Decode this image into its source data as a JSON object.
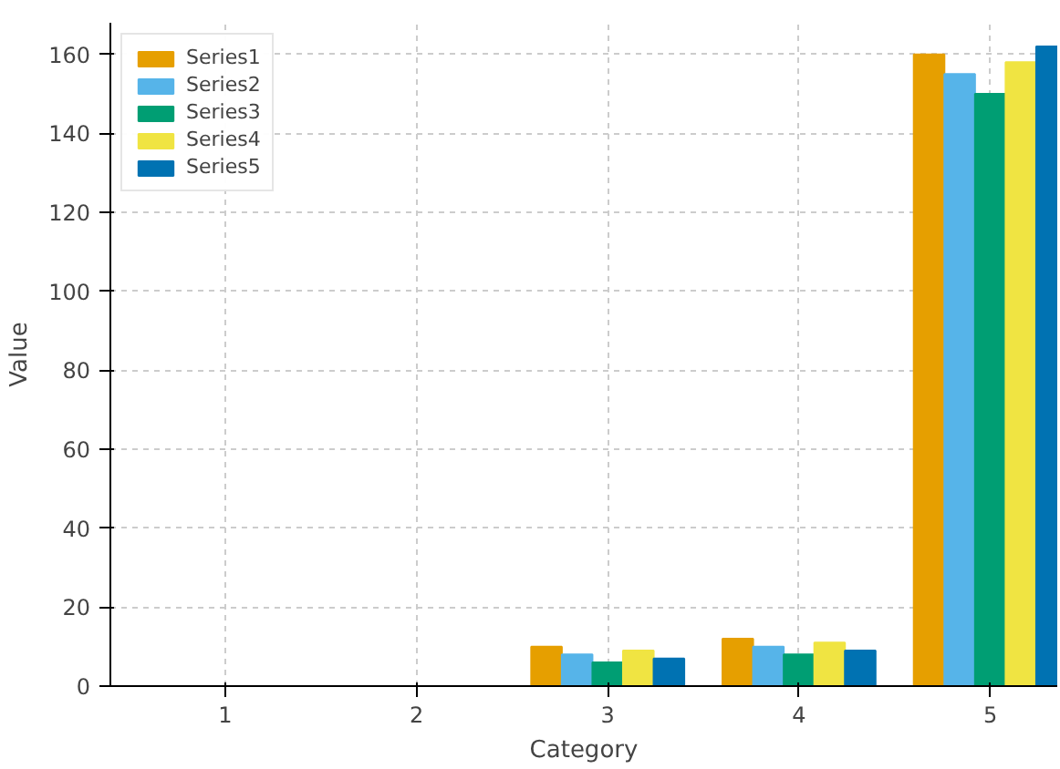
{
  "chart_data": {
    "type": "bar",
    "xlabel": "Category",
    "ylabel": "Value",
    "categories": [
      "1",
      "2",
      "3",
      "4",
      "5"
    ],
    "series": [
      {
        "name": "Series1",
        "color": "#e69f00",
        "values": [
          0,
          0,
          10,
          12,
          160
        ]
      },
      {
        "name": "Series2",
        "color": "#56b4e9",
        "values": [
          0,
          0,
          8,
          10,
          155
        ]
      },
      {
        "name": "Series3",
        "color": "#009e73",
        "values": [
          0,
          0,
          6,
          8,
          150
        ]
      },
      {
        "name": "Series4",
        "color": "#f0e442",
        "values": [
          0,
          0,
          9,
          11,
          158
        ]
      },
      {
        "name": "Series5",
        "color": "#0072b2",
        "values": [
          0,
          0,
          7,
          9,
          162
        ]
      }
    ],
    "ylim": [
      0,
      168
    ],
    "yticks": [
      0,
      20,
      40,
      60,
      80,
      100,
      120,
      140,
      160
    ],
    "grid": true,
    "legend": "top left"
  }
}
